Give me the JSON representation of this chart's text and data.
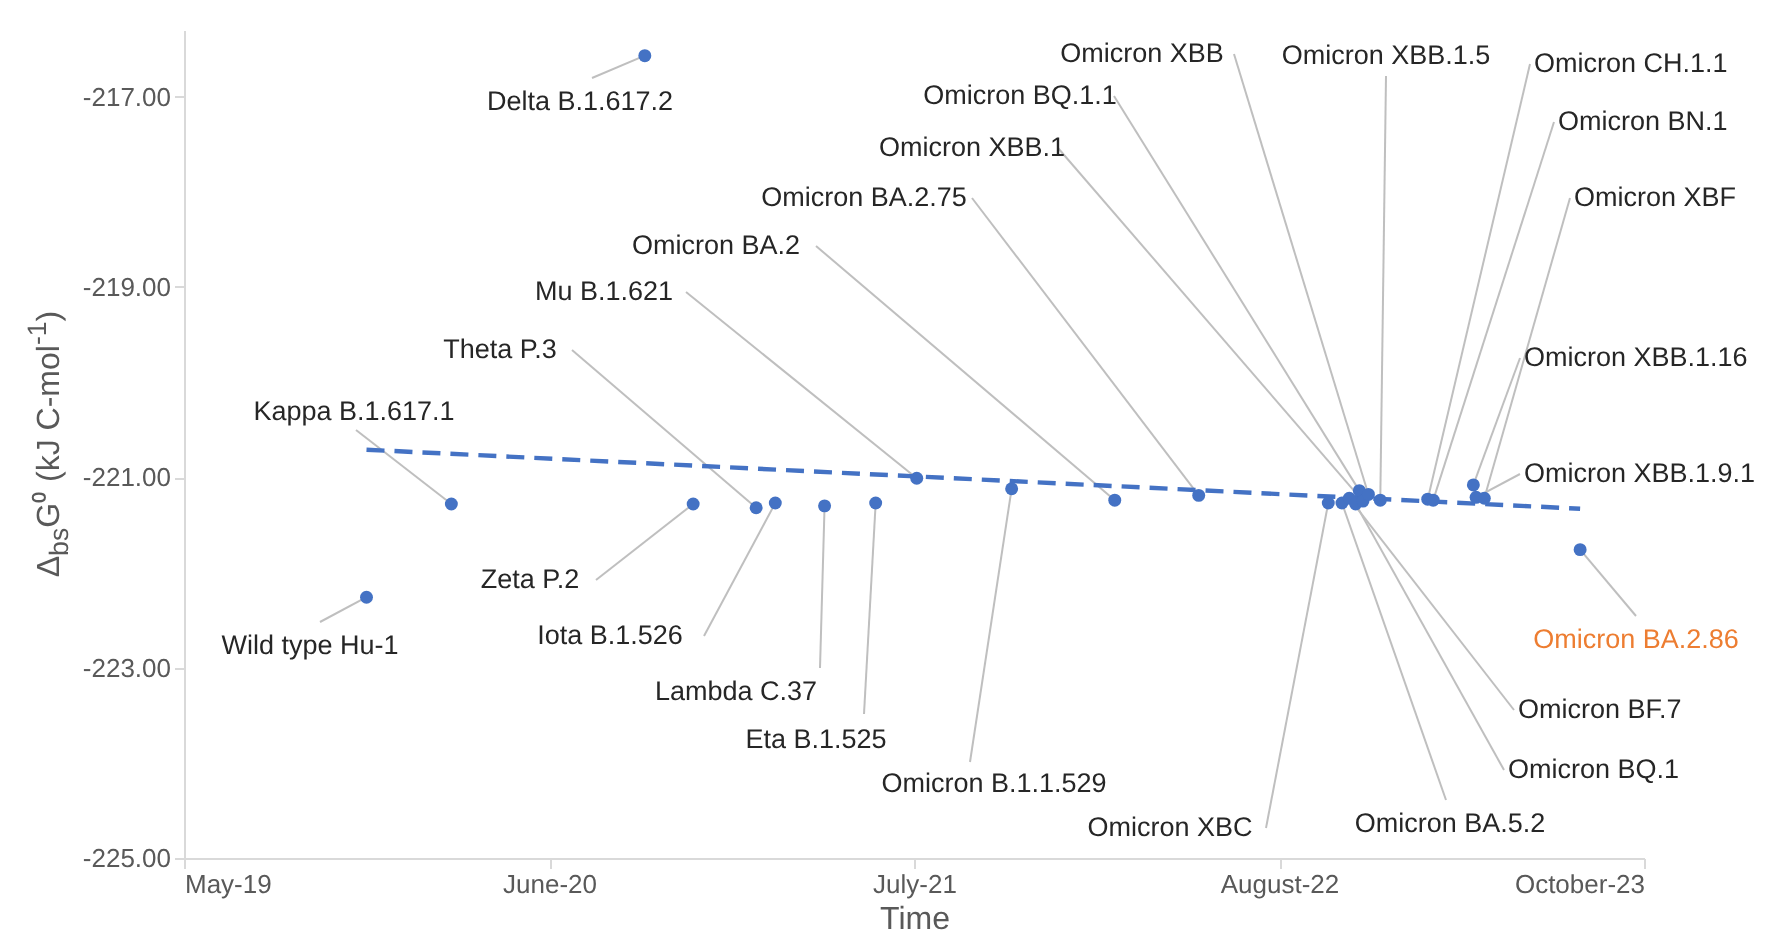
{
  "chart_data": {
    "type": "scatter",
    "xlabel": "Time",
    "ylabel": "Δ$_{bs}$G⁰ (kJ C-mol$^{-1}$)",
    "xlim": [
      "2019-05-15",
      "2023-10-01"
    ],
    "xticks": [
      {
        "value": "2019-05-15",
        "label": "May-19"
      },
      {
        "value": "2020-06-18",
        "label": "June-20"
      },
      {
        "value": "2021-07-23",
        "label": "July-21"
      },
      {
        "value": "2022-08-27",
        "label": "August-22"
      },
      {
        "value": "2023-10-01",
        "label": "October-23"
      }
    ],
    "ylim": [
      -225,
      -216.3
    ],
    "yticks": [
      {
        "value": -225,
        "label": "-225.00"
      },
      {
        "value": -223,
        "label": "-223.00"
      },
      {
        "value": -221,
        "label": "-221.00"
      },
      {
        "value": -219,
        "label": "-219.00"
      },
      {
        "value": -217,
        "label": "-217.00"
      }
    ],
    "series": [
      {
        "marker": "circle",
        "color": "#4472c4",
        "x": [
          "2019-12-01",
          "2020-03-03",
          "2020-10-01",
          "2020-11-23",
          "2021-01-31",
          "2021-02-21",
          "2021-04-16",
          "2021-06-11",
          "2021-07-26",
          "2021-11-07",
          "2022-02-28",
          "2022-05-31",
          "2022-10-20",
          "2022-11-04",
          "2022-11-12",
          "2022-11-19",
          "2022-11-23",
          "2022-11-27",
          "2022-12-03",
          "2022-12-16",
          "2023-02-06",
          "2023-02-12",
          "2023-03-28",
          "2023-03-31",
          "2023-04-09",
          "2023-07-23"
        ],
        "values": [
          -222.26,
          -221.28,
          -216.57,
          -221.28,
          -221.32,
          -221.27,
          -221.3,
          -221.27,
          -221.01,
          -221.12,
          -221.24,
          -221.19,
          -221.27,
          -221.27,
          -221.22,
          -221.28,
          -221.14,
          -221.25,
          -221.18,
          -221.24,
          -221.23,
          -221.24,
          -221.08,
          -221.21,
          -221.22,
          -221.76
        ]
      },
      {
        "type": "line",
        "line_style": "dashed",
        "color": "#4472c4",
        "x": [
          "2019-12-01",
          "2023-07-23"
        ],
        "values": [
          -220.71,
          -221.33
        ]
      }
    ],
    "annotations": [
      {
        "text": "Wild type Hu-1",
        "x": "2019-12-01",
        "y": -222.26
      },
      {
        "text": "Kappa B.1.617.1",
        "x": "2020-03-03",
        "y": -221.28
      },
      {
        "text": "Delta B.1.617.2",
        "x": "2020-10-01",
        "y": -216.57
      },
      {
        "text": "Zeta P.2",
        "x": "2020-11-23",
        "y": -221.28
      },
      {
        "text": "Theta P.3",
        "x": "2021-01-31",
        "y": -221.32
      },
      {
        "text": "Iota  B.1.526",
        "x": "2021-02-21",
        "y": -221.27
      },
      {
        "text": "Lambda C.37",
        "x": "2021-04-16",
        "y": -221.3
      },
      {
        "text": "Eta B.1.525",
        "x": "2021-06-11",
        "y": -221.27
      },
      {
        "text": "Mu B.1.621",
        "x": "2021-07-26",
        "y": -221.01
      },
      {
        "text": "Omicron B.1.1.529",
        "x": "2021-11-07",
        "y": -221.12
      },
      {
        "text": "Omicron BA.2",
        "x": "2022-02-28",
        "y": -221.24
      },
      {
        "text": "Omicron BA.2.75",
        "x": "2022-05-31",
        "y": -221.19
      },
      {
        "text": "Omicron XBC",
        "x": "2022-10-20",
        "y": -221.27
      },
      {
        "text": "Omicron BA.5.2",
        "x": "2022-11-04",
        "y": -221.27
      },
      {
        "text": "Omicron BF.7",
        "x": "2022-11-12",
        "y": -221.22
      },
      {
        "text": "Omicron BQ.1",
        "x": "2022-11-19",
        "y": -221.28
      },
      {
        "text": "Omicron BQ.1.1",
        "x": "2022-11-23",
        "y": -221.14
      },
      {
        "text": "Omicron XBB.1",
        "x": "2022-11-27",
        "y": -221.25
      },
      {
        "text": "Omicron XBB",
        "x": "2022-12-03",
        "y": -221.18
      },
      {
        "text": "Omicron XBB.1.5",
        "x": "2022-12-16",
        "y": -221.24
      },
      {
        "text": "Omicron CH.1.1",
        "x": "2023-02-06",
        "y": -221.23
      },
      {
        "text": "Omicron BN.1",
        "x": "2023-02-12",
        "y": -221.24
      },
      {
        "text": "Omicron XBB.1.16",
        "x": "2023-03-28",
        "y": -221.08
      },
      {
        "text": "Omicron XBB.1.9.1",
        "x": "2023-03-31",
        "y": -221.21
      },
      {
        "text": "Omicron XBF",
        "x": "2023-04-09",
        "y": -221.22
      },
      {
        "text": "Omicron BA.2.86",
        "x": "2023-07-23",
        "y": -221.76
      }
    ]
  }
}
